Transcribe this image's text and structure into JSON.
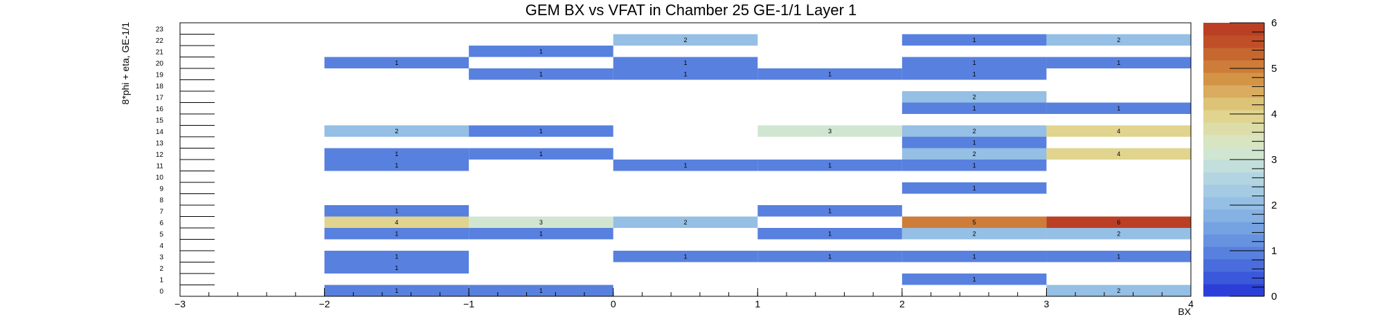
{
  "chart_data": {
    "type": "heatmap",
    "title": "GEM BX vs VFAT in Chamber 25 GE-1/1 Layer 1",
    "xlabel": "BX",
    "ylabel": "8*phi + eta, GE-1/1",
    "xlim": [
      -3,
      4
    ],
    "x_ticks": [
      "−3",
      "−2",
      "−1",
      "0",
      "1",
      "2",
      "3",
      "4"
    ],
    "y_bins": [
      "0",
      "1",
      "2",
      "3",
      "4",
      "5",
      "6",
      "7",
      "8",
      "9",
      "10",
      "11",
      "12",
      "13",
      "14",
      "15",
      "16",
      "17",
      "18",
      "19",
      "20",
      "21",
      "22",
      "23"
    ],
    "z_range": [
      0,
      6
    ],
    "z_ticks": [
      "0",
      "1",
      "2",
      "3",
      "4",
      "5",
      "6"
    ],
    "palette": [
      "#2b3fd8",
      "#3a58da",
      "#4a6cdc",
      "#5880de",
      "#6692e0",
      "#76a2e2",
      "#86b1e3",
      "#95bfe4",
      "#a4cbe3",
      "#b3d5e2",
      "#c3dfdb",
      "#d1e6d1",
      "#d9e4c0",
      "#ddddaa",
      "#e0d48f",
      "#ddc376",
      "#d9ac5f",
      "#d39446",
      "#cd7d39",
      "#c6672f",
      "#c04f28",
      "#bb3f24"
    ],
    "cells": [
      {
        "bx": -1.5,
        "y": 0,
        "v": 1
      },
      {
        "bx": -0.5,
        "y": 0,
        "v": 1
      },
      {
        "bx": 3.5,
        "y": 0,
        "v": 2
      },
      {
        "bx": 2.5,
        "y": 1,
        "v": 1
      },
      {
        "bx": -1.5,
        "y": 2,
        "v": 1
      },
      {
        "bx": -1.5,
        "y": 3,
        "v": 1
      },
      {
        "bx": 0.5,
        "y": 3,
        "v": 1
      },
      {
        "bx": 1.5,
        "y": 3,
        "v": 1
      },
      {
        "bx": 2.5,
        "y": 3,
        "v": 1
      },
      {
        "bx": 3.5,
        "y": 3,
        "v": 1
      },
      {
        "bx": -1.5,
        "y": 5,
        "v": 1
      },
      {
        "bx": -0.5,
        "y": 5,
        "v": 1
      },
      {
        "bx": 1.5,
        "y": 5,
        "v": 1
      },
      {
        "bx": 2.5,
        "y": 5,
        "v": 2
      },
      {
        "bx": 3.5,
        "y": 5,
        "v": 2
      },
      {
        "bx": -1.5,
        "y": 6,
        "v": 4
      },
      {
        "bx": -0.5,
        "y": 6,
        "v": 3
      },
      {
        "bx": 0.5,
        "y": 6,
        "v": 2
      },
      {
        "bx": 2.5,
        "y": 6,
        "v": 5
      },
      {
        "bx": 3.5,
        "y": 6,
        "v": 6
      },
      {
        "bx": -1.5,
        "y": 7,
        "v": 1
      },
      {
        "bx": 1.5,
        "y": 7,
        "v": 1
      },
      {
        "bx": 2.5,
        "y": 9,
        "v": 1
      },
      {
        "bx": -1.5,
        "y": 11,
        "v": 1
      },
      {
        "bx": 0.5,
        "y": 11,
        "v": 1
      },
      {
        "bx": 1.5,
        "y": 11,
        "v": 1
      },
      {
        "bx": 2.5,
        "y": 11,
        "v": 1
      },
      {
        "bx": -1.5,
        "y": 12,
        "v": 1
      },
      {
        "bx": -0.5,
        "y": 12,
        "v": 1
      },
      {
        "bx": 2.5,
        "y": 12,
        "v": 2
      },
      {
        "bx": 3.5,
        "y": 12,
        "v": 4
      },
      {
        "bx": 2.5,
        "y": 13,
        "v": 1
      },
      {
        "bx": -1.5,
        "y": 14,
        "v": 2
      },
      {
        "bx": -0.5,
        "y": 14,
        "v": 1
      },
      {
        "bx": 1.5,
        "y": 14,
        "v": 3
      },
      {
        "bx": 2.5,
        "y": 14,
        "v": 2
      },
      {
        "bx": 3.5,
        "y": 14,
        "v": 4
      },
      {
        "bx": 2.5,
        "y": 16,
        "v": 1
      },
      {
        "bx": 3.5,
        "y": 16,
        "v": 1
      },
      {
        "bx": 2.5,
        "y": 17,
        "v": 2
      },
      {
        "bx": -0.5,
        "y": 19,
        "v": 1
      },
      {
        "bx": 0.5,
        "y": 19,
        "v": 1
      },
      {
        "bx": 1.5,
        "y": 19,
        "v": 1
      },
      {
        "bx": 2.5,
        "y": 19,
        "v": 1
      },
      {
        "bx": -1.5,
        "y": 20,
        "v": 1
      },
      {
        "bx": 0.5,
        "y": 20,
        "v": 1
      },
      {
        "bx": 2.5,
        "y": 20,
        "v": 1
      },
      {
        "bx": 3.5,
        "y": 20,
        "v": 1
      },
      {
        "bx": -0.5,
        "y": 21,
        "v": 1
      },
      {
        "bx": 0.5,
        "y": 22,
        "v": 2
      },
      {
        "bx": 2.5,
        "y": 22,
        "v": 1
      },
      {
        "bx": 3.5,
        "y": 22,
        "v": 2
      }
    ],
    "grid": false,
    "legend": "color scale on right"
  }
}
